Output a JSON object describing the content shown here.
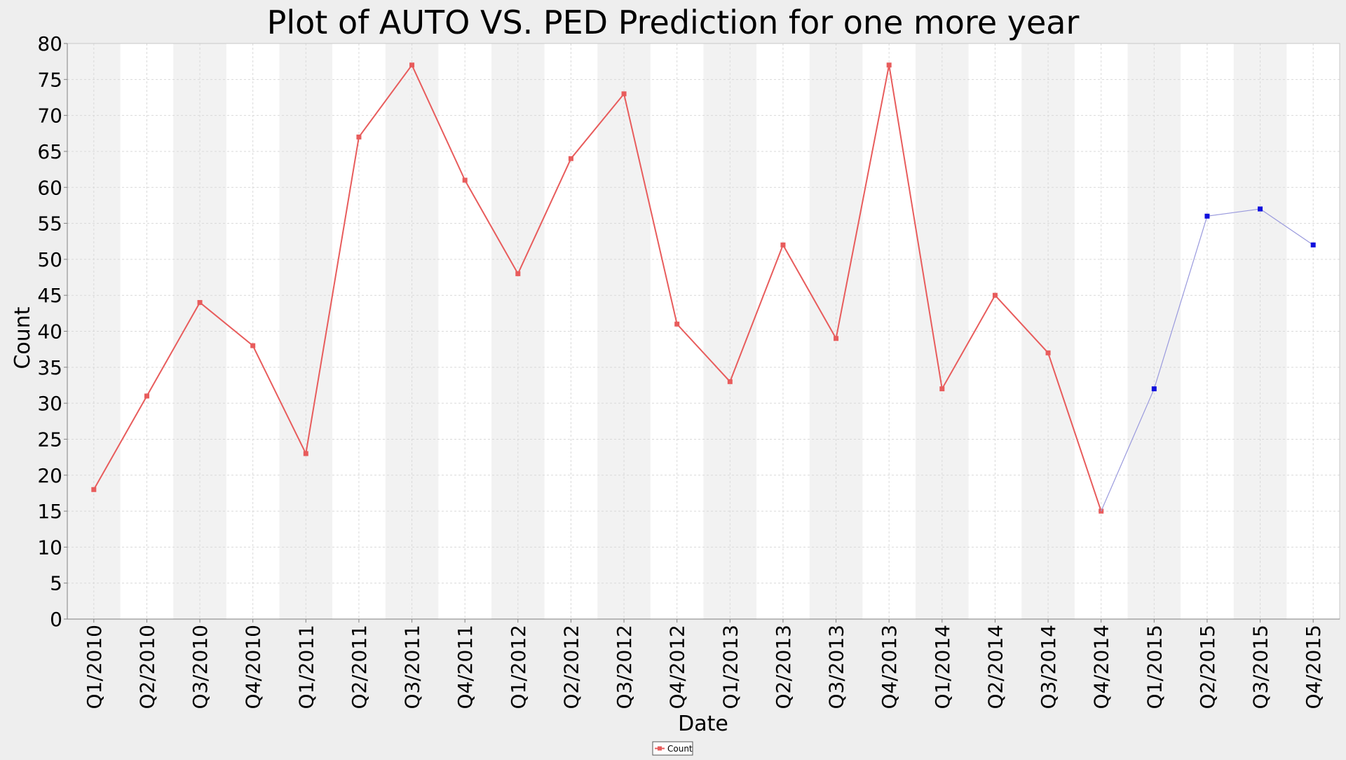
{
  "chart_data": {
    "type": "line",
    "title": "Plot of AUTO VS. PED Prediction for one more year",
    "xlabel": "Date",
    "ylabel": "Count",
    "ylim": [
      0,
      80
    ],
    "yticks": [
      0,
      5,
      10,
      15,
      20,
      25,
      30,
      35,
      40,
      45,
      50,
      55,
      60,
      65,
      70,
      75,
      80
    ],
    "grid": true,
    "legend_placement": "bottom-center",
    "categories": [
      "Q1/2010",
      "Q2/2010",
      "Q3/2010",
      "Q4/2010",
      "Q1/2011",
      "Q2/2011",
      "Q3/2011",
      "Q4/2011",
      "Q1/2012",
      "Q2/2012",
      "Q3/2012",
      "Q4/2012",
      "Q1/2013",
      "Q2/2013",
      "Q3/2013",
      "Q4/2013",
      "Q1/2014",
      "Q2/2014",
      "Q3/2014",
      "Q4/2014",
      "Q1/2015",
      "Q2/2015",
      "Q3/2015",
      "Q4/2015"
    ],
    "series": [
      {
        "name": "Count",
        "color": "#e85c5c",
        "marker": "square",
        "in_legend": true,
        "values": [
          18,
          31,
          44,
          38,
          23,
          67,
          77,
          61,
          48,
          64,
          73,
          41,
          33,
          52,
          39,
          77,
          32,
          45,
          37,
          15,
          null,
          null,
          null,
          null
        ]
      },
      {
        "color": "#1010dd",
        "line_color": "#9999dd",
        "marker": "square",
        "in_legend": false,
        "values": [
          null,
          null,
          null,
          null,
          null,
          null,
          null,
          null,
          null,
          null,
          null,
          null,
          null,
          null,
          null,
          null,
          null,
          null,
          null,
          15,
          32,
          56,
          57,
          52
        ]
      }
    ],
    "colors": {
      "background": "#eeeeee",
      "plot_band_dark": "#f2f2f2",
      "plot_band_light": "#ffffff",
      "gridline": "#d9d9d9"
    }
  }
}
